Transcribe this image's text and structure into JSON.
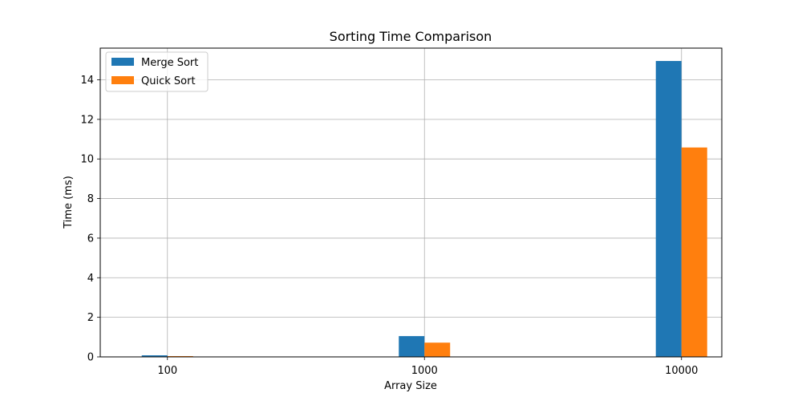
{
  "chart_data": {
    "type": "bar",
    "title": "Sorting Time Comparison",
    "xlabel": "Array Size",
    "ylabel": "Time (ms)",
    "categories": [
      "100",
      "1000",
      "10000"
    ],
    "series": [
      {
        "name": "Merge Sort",
        "color": "#1f77b4",
        "values": [
          0.08,
          1.05,
          14.95
        ]
      },
      {
        "name": "Quick Sort",
        "color": "#ff7f0e",
        "values": [
          0.04,
          0.72,
          10.58
        ]
      }
    ],
    "ylim": [
      0,
      15.6
    ],
    "yticks": [
      0,
      2,
      4,
      6,
      8,
      10,
      12,
      14
    ],
    "grid": true,
    "legend_position": "top-left"
  }
}
